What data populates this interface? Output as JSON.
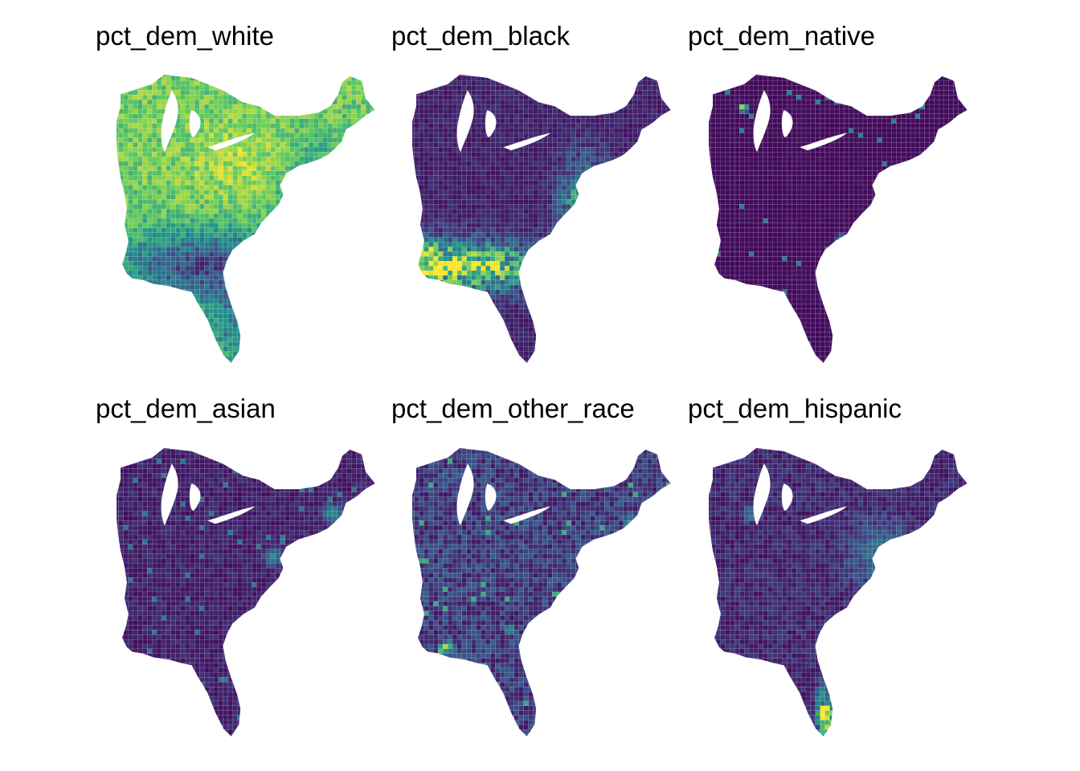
{
  "facets": [
    {
      "title": "pct_dem_white",
      "pattern": "white"
    },
    {
      "title": "pct_dem_black",
      "pattern": "black"
    },
    {
      "title": "pct_dem_native",
      "pattern": "native"
    },
    {
      "title": "pct_dem_asian",
      "pattern": "asian"
    },
    {
      "title": "pct_dem_other_race",
      "pattern": "other"
    },
    {
      "title": "pct_dem_hispanic",
      "pattern": "hispanic"
    }
  ],
  "colors": {
    "scale": [
      "#440154",
      "#3b528b",
      "#21918c",
      "#5ec962",
      "#fde725"
    ],
    "background": "#ffffff",
    "borders": "#ffffff"
  }
}
